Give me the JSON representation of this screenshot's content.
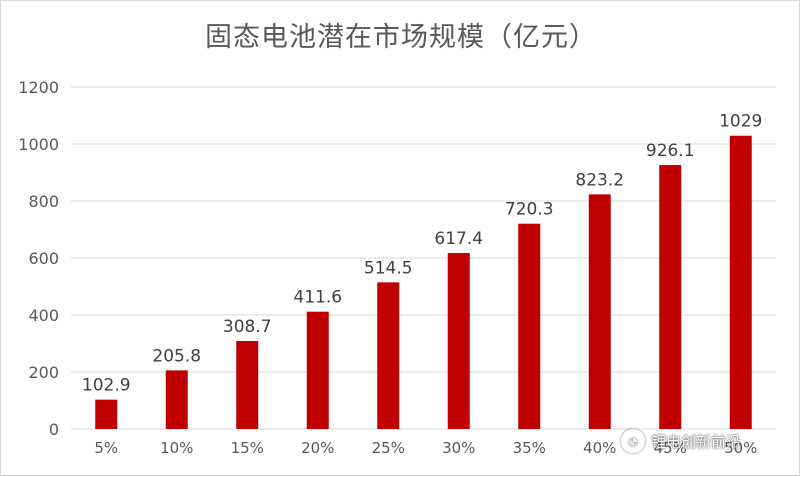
{
  "chart_data": {
    "type": "bar",
    "title": "固态电池潜在市场规模（亿元）",
    "categories": [
      "5%",
      "10%",
      "15%",
      "20%",
      "25%",
      "30%",
      "35%",
      "40%",
      "45%",
      "50%"
    ],
    "values": [
      102.9,
      205.8,
      308.7,
      411.6,
      514.5,
      617.4,
      720.3,
      823.2,
      926.1,
      1029
    ],
    "data_labels": [
      "102.9",
      "205.8",
      "308.7",
      "411.6",
      "514.5",
      "617.4",
      "720.3",
      "823.2",
      "926.1",
      "1029"
    ],
    "ylim": [
      0,
      1200
    ],
    "yticks": [
      0,
      200,
      400,
      600,
      800,
      1000,
      1200
    ],
    "xlabel": "",
    "ylabel": "",
    "grid": "horizontal",
    "legend": "none",
    "bar_color": "#c00000"
  },
  "watermark": {
    "icon": "wechat-icon",
    "text": "锂电创新前沿"
  }
}
